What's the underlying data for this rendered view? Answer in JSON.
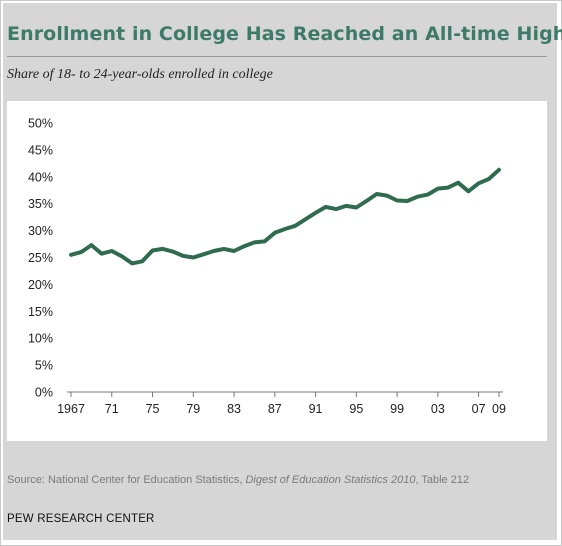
{
  "chart_data": {
    "type": "line",
    "title": "Enrollment in College Has Reached an All-time High",
    "subtitle": "Share of 18- to 24-year-olds enrolled in college",
    "xlabel": "",
    "ylabel": "",
    "xlim": [
      1967,
      2009
    ],
    "ylim": [
      0,
      50
    ],
    "y_ticks": [
      "0%",
      "5%",
      "10%",
      "15%",
      "20%",
      "25%",
      "30%",
      "35%",
      "40%",
      "45%",
      "50%"
    ],
    "x_tick_values": [
      1967,
      1971,
      1975,
      1979,
      1983,
      1987,
      1991,
      1995,
      1999,
      2003,
      2007,
      2009
    ],
    "x_tick_labels": [
      "1967",
      "71",
      "75",
      "79",
      "83",
      "87",
      "91",
      "95",
      "99",
      "03",
      "07",
      "09"
    ],
    "grid": false,
    "line_color": "#2f6b4f",
    "series": [
      {
        "x": [
          1967,
          1968,
          1969,
          1970,
          1971,
          1972,
          1973,
          1974,
          1975,
          1976,
          1977,
          1978,
          1979,
          1980,
          1981,
          1982,
          1983,
          1984,
          1985,
          1986,
          1987,
          1988,
          1989,
          1990,
          1991,
          1992,
          1993,
          1994,
          1995,
          1996,
          1997,
          1998,
          1999,
          2000,
          2001,
          2002,
          2003,
          2004,
          2005,
          2006,
          2007,
          2008,
          2009
        ],
        "values": [
          25.5,
          26.0,
          27.3,
          25.7,
          26.2,
          25.2,
          23.9,
          24.3,
          26.3,
          26.6,
          26.1,
          25.3,
          25.0,
          25.6,
          26.2,
          26.6,
          26.2,
          27.1,
          27.8,
          28.0,
          29.6,
          30.3,
          30.9,
          32.1,
          33.3,
          34.4,
          34.0,
          34.6,
          34.3,
          35.5,
          36.8,
          36.5,
          35.6,
          35.5,
          36.3,
          36.7,
          37.8,
          38.0,
          38.9,
          37.3,
          38.8,
          39.6,
          41.3
        ]
      }
    ]
  },
  "source": {
    "prefix": "Source: National Center for Education Statistics,",
    "italic": "Digest of Education Statistics 2010",
    "suffix": ", Table 212"
  },
  "org": "PEW RESEARCH CENTER"
}
